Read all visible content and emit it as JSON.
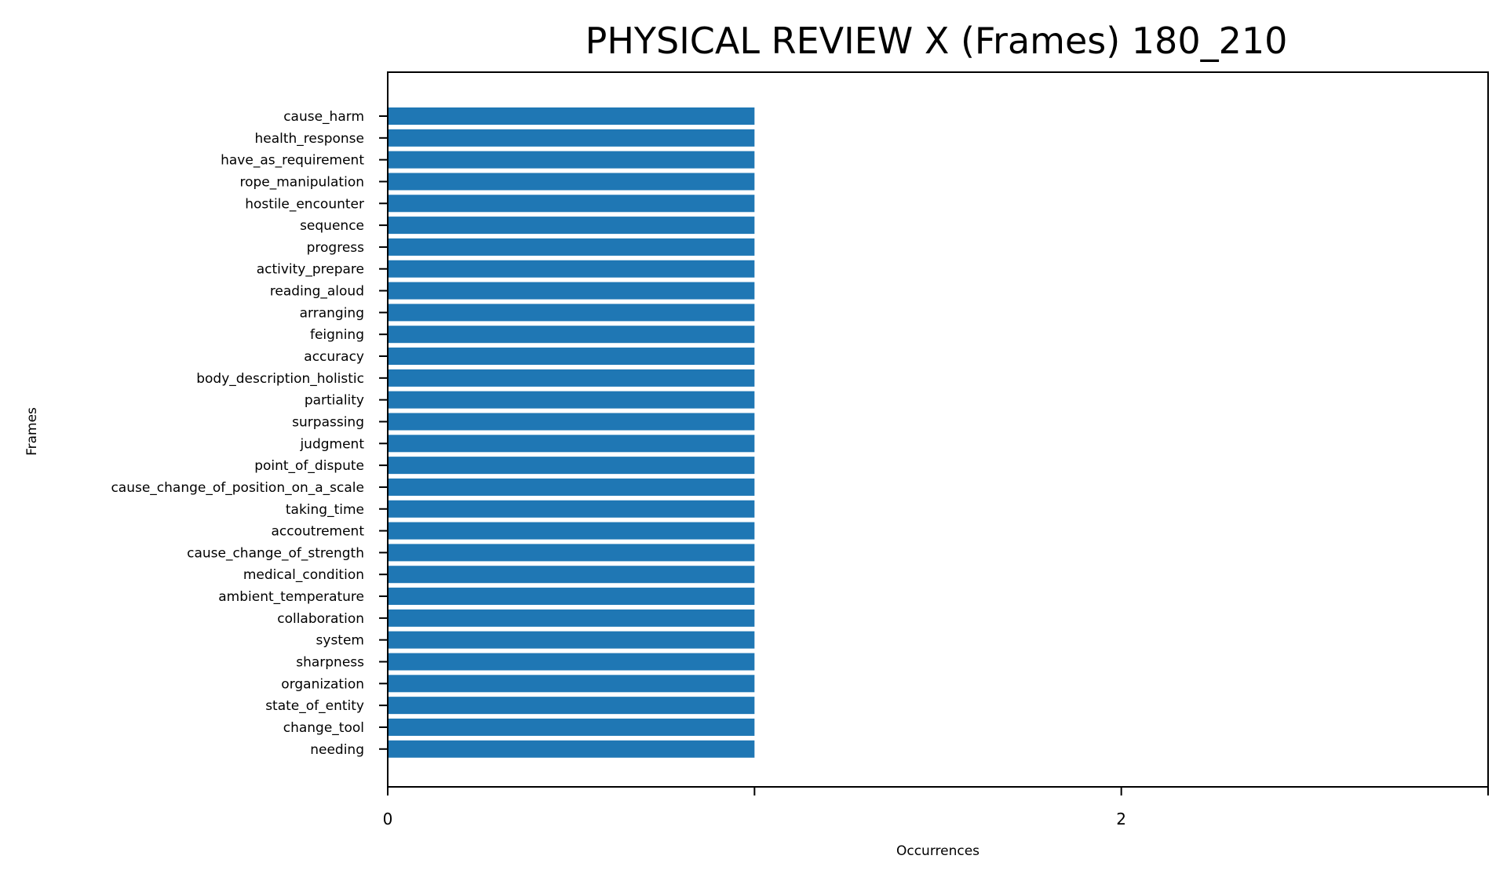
{
  "chart_data": {
    "type": "bar",
    "orientation": "horizontal",
    "title": "PHYSICAL REVIEW X (Frames) 180_210",
    "xlabel": "Occurrences",
    "ylabel": "Frames",
    "xlim": [
      0,
      3
    ],
    "xticks": [
      0,
      1,
      2,
      3
    ],
    "xtick_labels": [
      "0",
      "",
      "2",
      ""
    ],
    "grid": false,
    "color": "#1f77b4",
    "categories": [
      "cause_harm",
      "health_response",
      "have_as_requirement",
      "rope_manipulation",
      "hostile_encounter",
      "sequence",
      "progress",
      "activity_prepare",
      "reading_aloud",
      "arranging",
      "feigning",
      "accuracy",
      "body_description_holistic",
      "partiality",
      "surpassing",
      "judgment",
      "point_of_dispute",
      "cause_change_of_position_on_a_scale",
      "taking_time",
      "accoutrement",
      "cause_change_of_strength",
      "medical_condition",
      "ambient_temperature",
      "collaboration",
      "system",
      "sharpness",
      "organization",
      "state_of_entity",
      "change_tool",
      "needing"
    ],
    "values": [
      1,
      1,
      1,
      1,
      1,
      1,
      1,
      1,
      1,
      1,
      1,
      1,
      1,
      1,
      1,
      1,
      1,
      1,
      1,
      1,
      1,
      1,
      1,
      1,
      1,
      1,
      1,
      1,
      1,
      1
    ]
  }
}
